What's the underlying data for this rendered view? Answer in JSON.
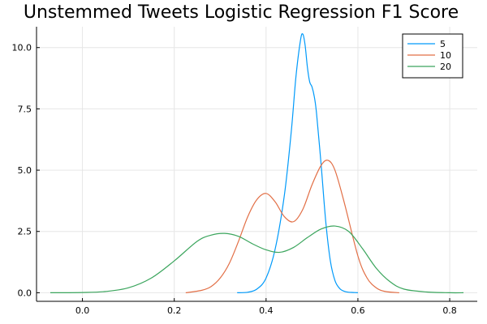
{
  "chart_data": {
    "type": "line",
    "title": "Unstemmed Tweets Logistic Regression F1 Score",
    "xlabel": "",
    "ylabel": "",
    "xlim": [
      -0.1,
      0.86
    ],
    "ylim": [
      -0.35,
      10.85
    ],
    "xticks": [
      0.0,
      0.2,
      0.4,
      0.6,
      0.8
    ],
    "xtick_labels": [
      "0.0",
      "0.2",
      "0.4",
      "0.6",
      "0.8"
    ],
    "yticks": [
      0.0,
      2.5,
      5.0,
      7.5,
      10.0
    ],
    "ytick_labels": [
      "0.0",
      "2.5",
      "5.0",
      "7.5",
      "10.0"
    ],
    "grid": true,
    "legend_position": "top-right",
    "series": [
      {
        "name": "5",
        "color": "#009AFA",
        "x": [
          0.337,
          0.36,
          0.38,
          0.4,
          0.42,
          0.44,
          0.455,
          0.465,
          0.475,
          0.48,
          0.485,
          0.49,
          0.495,
          0.5,
          0.505,
          0.51,
          0.52,
          0.53,
          0.54,
          0.55,
          0.56,
          0.57,
          0.58,
          0.59,
          0.6
        ],
        "values": [
          0.0,
          0.02,
          0.15,
          0.6,
          1.8,
          4.0,
          6.6,
          8.8,
          10.3,
          10.55,
          10.1,
          9.2,
          8.6,
          8.4,
          8.0,
          7.3,
          5.2,
          2.9,
          1.3,
          0.5,
          0.18,
          0.06,
          0.02,
          0.01,
          0.0
        ]
      },
      {
        "name": "10",
        "color": "#E26F46",
        "x": [
          0.225,
          0.26,
          0.28,
          0.3,
          0.32,
          0.34,
          0.36,
          0.38,
          0.4,
          0.42,
          0.44,
          0.46,
          0.48,
          0.5,
          0.52,
          0.535,
          0.55,
          0.57,
          0.6,
          0.62,
          0.64,
          0.66,
          0.69
        ],
        "values": [
          0.0,
          0.1,
          0.25,
          0.6,
          1.2,
          2.1,
          3.1,
          3.8,
          4.05,
          3.7,
          3.1,
          2.9,
          3.4,
          4.4,
          5.2,
          5.4,
          5.0,
          3.7,
          1.5,
          0.6,
          0.2,
          0.05,
          0.0
        ]
      },
      {
        "name": "20",
        "color": "#3BA55D",
        "x": [
          -0.07,
          0.0,
          0.05,
          0.1,
          0.15,
          0.2,
          0.25,
          0.28,
          0.31,
          0.34,
          0.37,
          0.4,
          0.43,
          0.46,
          0.49,
          0.52,
          0.55,
          0.58,
          0.61,
          0.64,
          0.67,
          0.7,
          0.75,
          0.8,
          0.83
        ],
        "values": [
          0.0,
          0.01,
          0.05,
          0.2,
          0.6,
          1.3,
          2.1,
          2.35,
          2.42,
          2.3,
          2.0,
          1.75,
          1.65,
          1.85,
          2.25,
          2.6,
          2.72,
          2.5,
          1.8,
          1.0,
          0.45,
          0.15,
          0.03,
          0.0,
          0.0
        ]
      }
    ]
  }
}
